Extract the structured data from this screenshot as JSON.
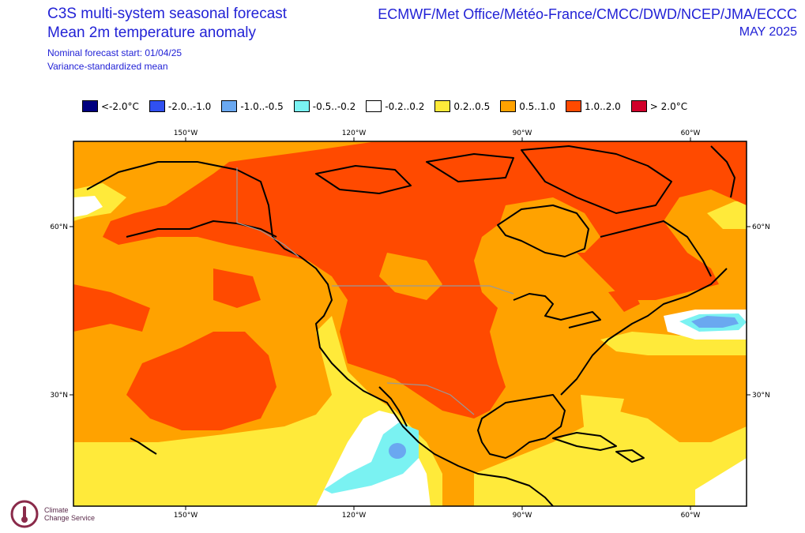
{
  "header": {
    "title_line1": "C3S multi-system seasonal forecast",
    "title_line2": "Mean 2m temperature anomaly",
    "nominal_start": "Nominal forecast start: 01/04/25",
    "method": "Variance-standardized mean",
    "centres": "ECMWF/Met Office/Météo-France/CMCC/DWD/NCEP/JMA/ECCC",
    "period": "MAY 2025"
  },
  "legend": [
    {
      "label": "<-2.0°C",
      "color": "#00007f"
    },
    {
      "label": "-2.0..-1.0",
      "color": "#3050f0"
    },
    {
      "label": "-1.0..-0.5",
      "color": "#6aa8f0"
    },
    {
      "label": "-0.5..-0.2",
      "color": "#7af2f2"
    },
    {
      "label": "-0.2..0.2",
      "color": "#ffffff"
    },
    {
      "label": "0.2..0.5",
      "color": "#ffea3a"
    },
    {
      "label": "0.5..1.0",
      "color": "#ffa200"
    },
    {
      "label": "1.0..2.0",
      "color": "#ff4a00"
    },
    {
      "label": "> 2.0°C",
      "color": "#d0002a"
    }
  ],
  "axes": {
    "lon_labels": [
      "150°W",
      "120°W",
      "90°W",
      "60°W"
    ],
    "lat_labels": [
      "60°N",
      "30°N"
    ]
  },
  "logo": {
    "line1": "Climate",
    "line2": "Change Service"
  }
}
